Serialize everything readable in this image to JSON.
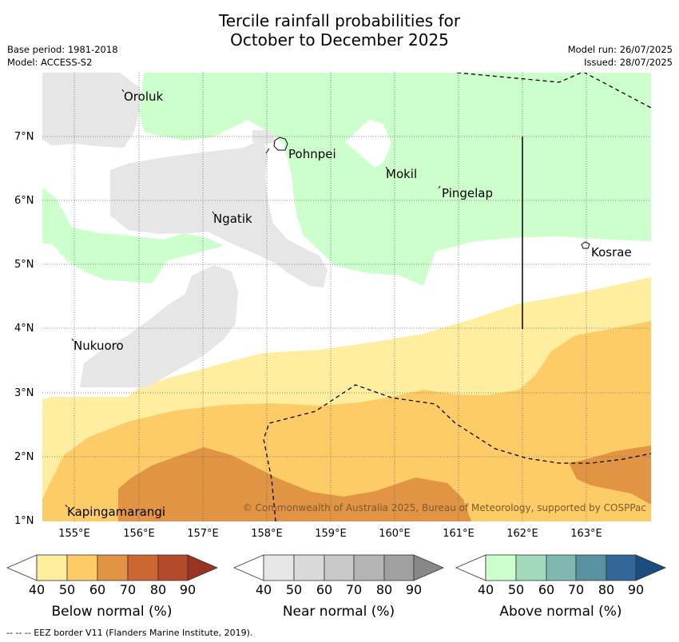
{
  "title_line1": "Tercile rainfall probabilities for",
  "title_line2": "October to December 2025",
  "base_period": "Base period: 1981-2018",
  "model": "Model: ACCESS-S2",
  "model_run": "Model run: 26/07/2025",
  "issued": "Issued: 28/07/2025",
  "y_ticks": [
    "7°N",
    "6°N",
    "5°N",
    "4°N",
    "3°N",
    "2°N",
    "1°N"
  ],
  "x_ticks": [
    "155°E",
    "156°E",
    "157°E",
    "158°E",
    "159°E",
    "160°E",
    "161°E",
    "162°E",
    "163°E"
  ],
  "places": {
    "oroluk": "Oroluk",
    "pohnpei": "Pohnpei",
    "mokil": "Mokil",
    "pingelap": "Pingelap",
    "ngatik": "Ngatik",
    "kosrae": "Kosrae",
    "nukuoro": "Nukuoro",
    "kapingamarangi": "Kapingamarangi"
  },
  "copyright": "© Commonwealth of Australia 2025, Bureau of Meteorology, supported by COSPPac",
  "colorbars": {
    "below": {
      "title": "Below normal (%)",
      "ticks": [
        "40",
        "50",
        "60",
        "70",
        "80",
        "90"
      ],
      "colors": [
        "#ffeda0",
        "#fecc66",
        "#e09444",
        "#cc6633",
        "#b34a2a",
        "#993322"
      ]
    },
    "near": {
      "title": "Near normal (%)",
      "ticks": [
        "40",
        "50",
        "60",
        "70",
        "80",
        "90"
      ],
      "colors": [
        "#e6e6e6",
        "#d9d9d9",
        "#c8c8c8",
        "#b4b4b4",
        "#a0a0a0",
        "#888888"
      ]
    },
    "above": {
      "title": "Above normal (%)",
      "ticks": [
        "40",
        "50",
        "60",
        "70",
        "80",
        "90"
      ],
      "colors": [
        "#ccffcc",
        "#a3d9bb",
        "#80b8b0",
        "#5891a0",
        "#336699",
        "#1a4d80"
      ]
    }
  },
  "footer": "--  --  -- EEZ border V11 (Flanders Marine Institute, 2019).",
  "colors": {
    "above_40": "#ccffcc",
    "near_40": "#e6e6e6",
    "below_40": "#ffeda0",
    "below_50": "#fecc66",
    "below_60": "#e09444"
  }
}
